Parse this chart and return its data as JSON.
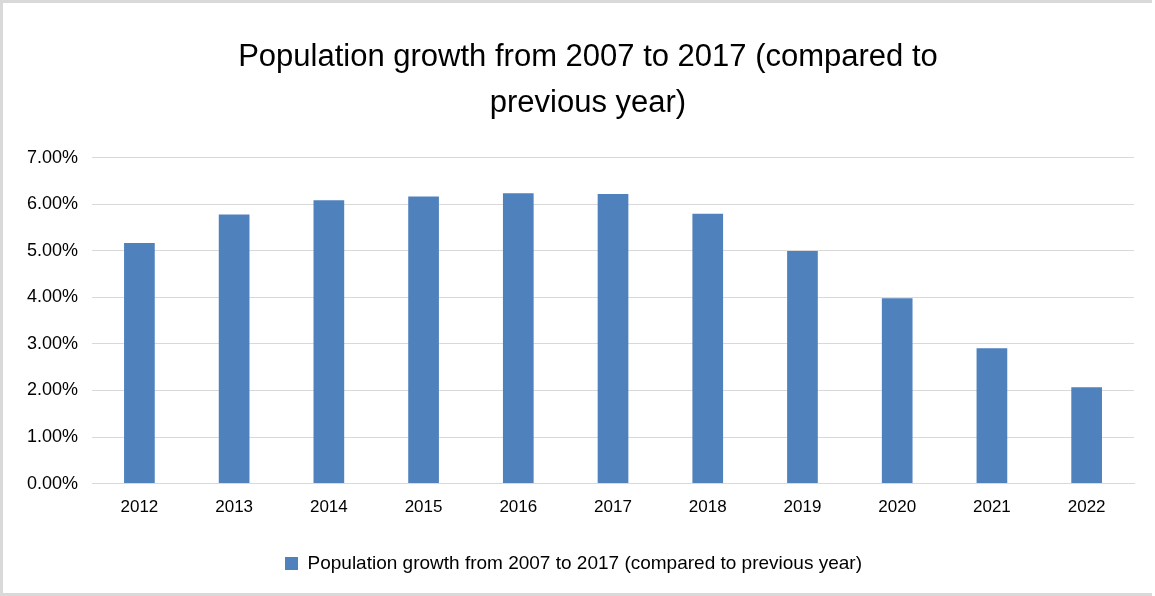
{
  "chart_data": {
    "type": "bar",
    "title": "Population growth from 2007 to 2017 (compared to previous year)",
    "categories": [
      "2012",
      "2013",
      "2014",
      "2015",
      "2016",
      "2017",
      "2018",
      "2019",
      "2020",
      "2021",
      "2022"
    ],
    "series": [
      {
        "name": "Population growth from 2007 to 2017 (compared to previous year)",
        "color": "#4f81bd",
        "values": [
          5.17,
          5.78,
          6.09,
          6.17,
          6.24,
          6.22,
          5.8,
          5.0,
          3.98,
          2.91,
          2.07
        ]
      }
    ],
    "ylim": [
      0,
      7
    ],
    "yticks": [
      {
        "value": 0,
        "label": "0.00%"
      },
      {
        "value": 1,
        "label": "1.00%"
      },
      {
        "value": 2,
        "label": "2.00%"
      },
      {
        "value": 3,
        "label": "3.00%"
      },
      {
        "value": 4,
        "label": "4.00%"
      },
      {
        "value": 5,
        "label": "5.00%"
      },
      {
        "value": 6,
        "label": "6.00%"
      },
      {
        "value": 7,
        "label": "7.00%"
      }
    ],
    "grid": "y",
    "legend": "bottom"
  }
}
